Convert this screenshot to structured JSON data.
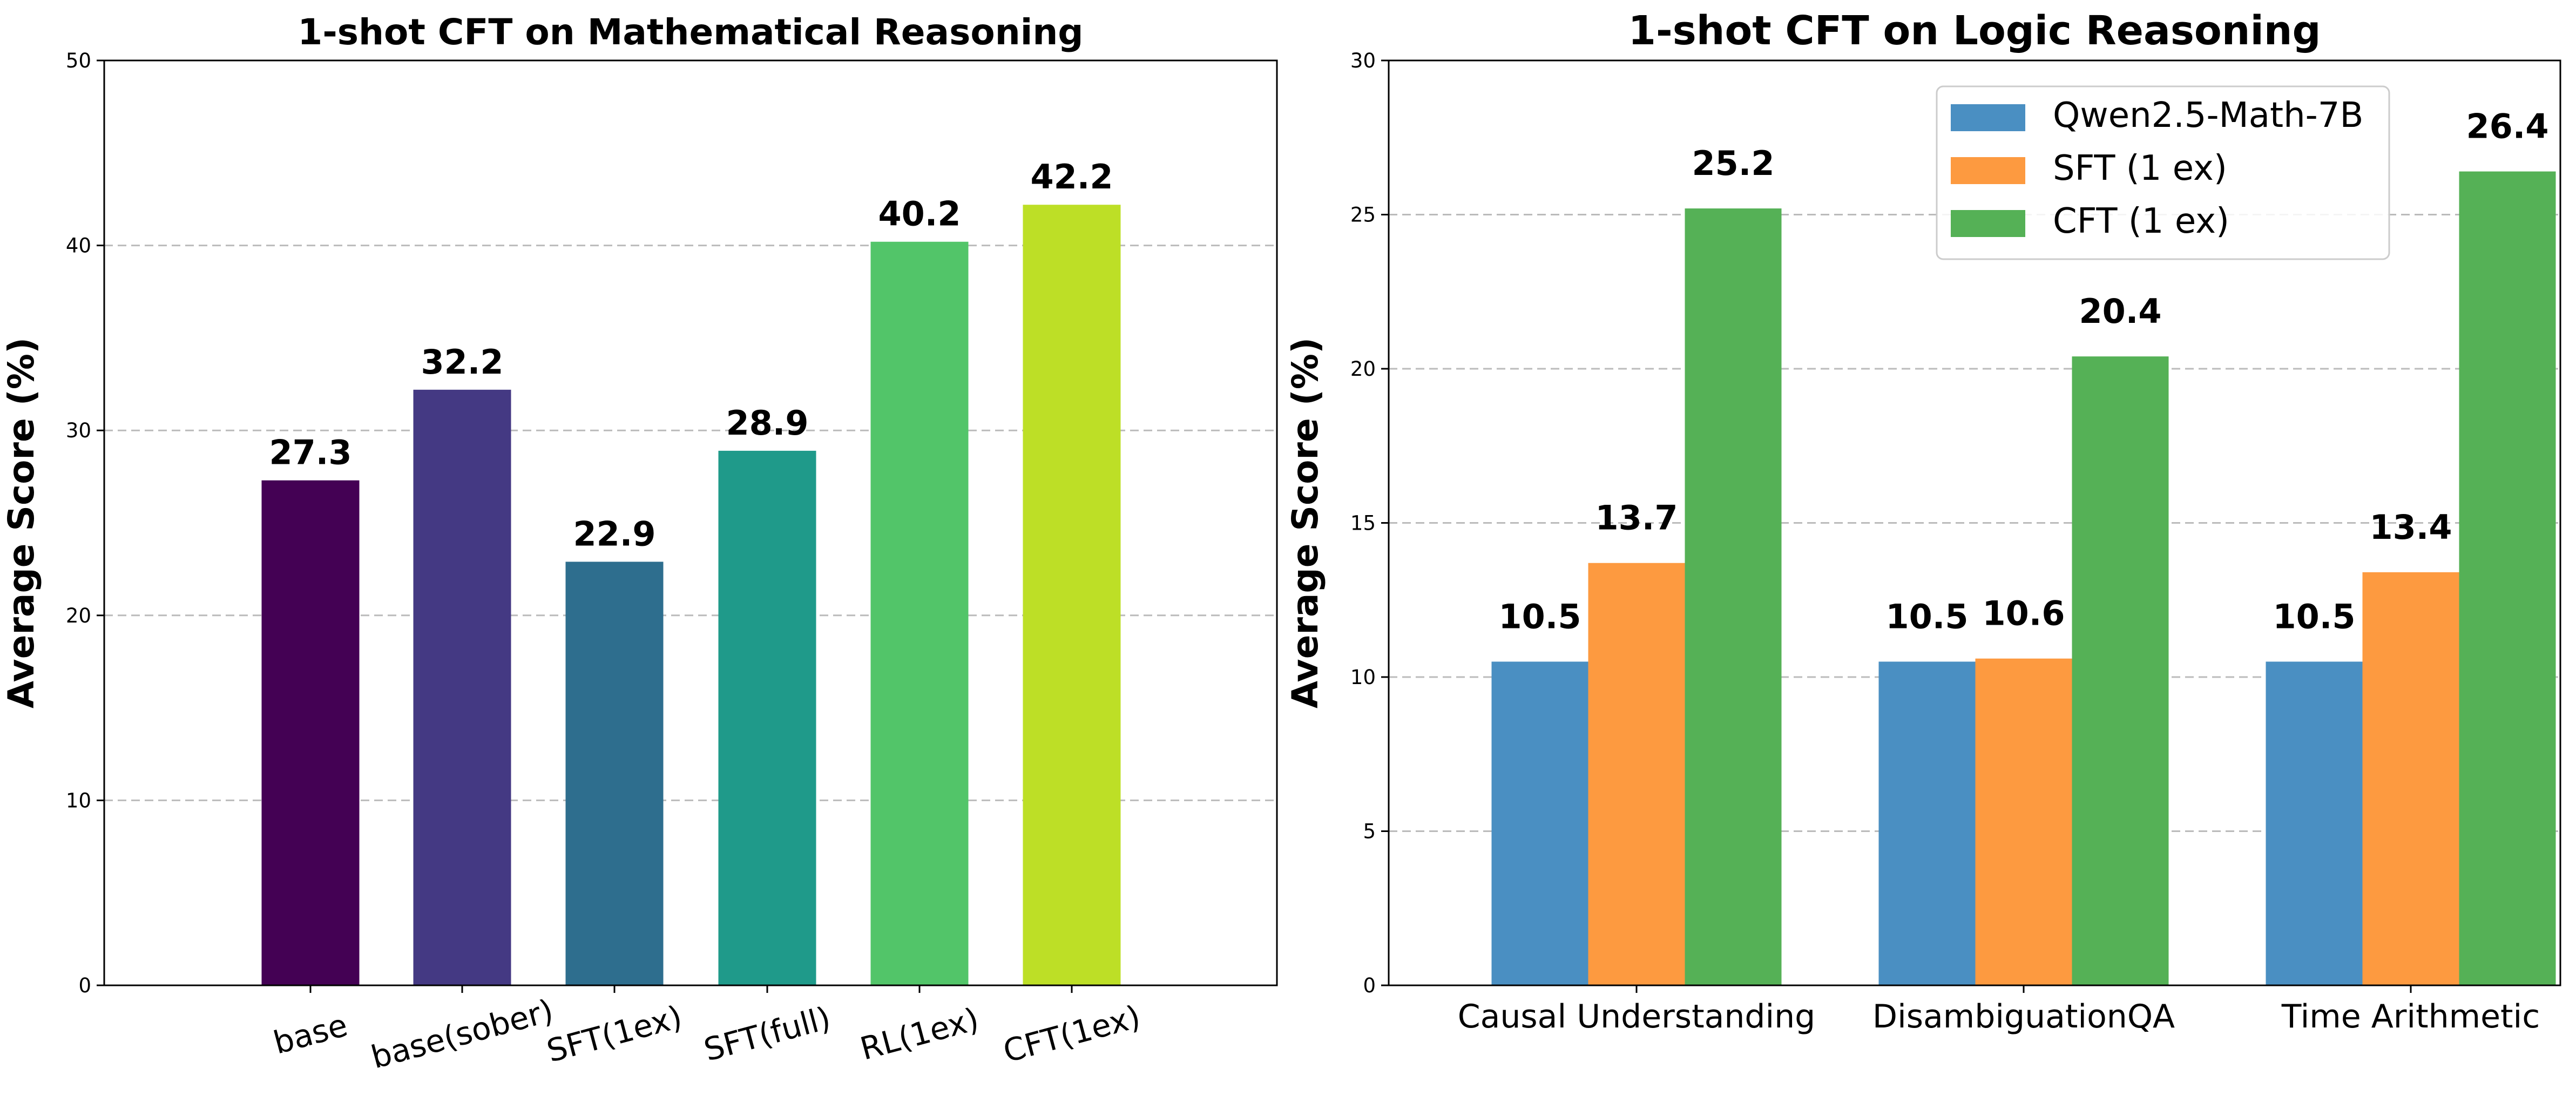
{
  "chart_data": [
    {
      "type": "bar",
      "title": "1-shot CFT on Mathematical Reasoning",
      "xlabel": "",
      "ylabel": "Average Score (%)",
      "ylim": [
        0,
        50
      ],
      "yticks": [
        "0",
        "10",
        "20",
        "30",
        "40",
        "50"
      ],
      "grid": "horizontal dashed",
      "categories": [
        "base",
        "base(sober)",
        "SFT(1ex)",
        "SFT(full)",
        "RL(1ex)",
        "CFT(1ex)"
      ],
      "values": [
        27.3,
        32.2,
        22.9,
        28.9,
        40.2,
        42.2
      ],
      "value_labels": [
        "27.3",
        "32.2",
        "22.9",
        "28.9",
        "40.2",
        "42.2"
      ],
      "colors": [
        "#440154",
        "#443983",
        "#2e6e8e",
        "#1f9a8a",
        "#52c569",
        "#bddf26"
      ]
    },
    {
      "type": "bar",
      "title": "1-shot CFT on Logic Reasoning",
      "xlabel": "",
      "ylabel": "Average Score (%)",
      "ylim": [
        0,
        30
      ],
      "yticks": [
        "0",
        "5",
        "10",
        "15",
        "20",
        "25",
        "30"
      ],
      "grid": "horizontal dashed",
      "legend_position": "top-right",
      "categories": [
        "Causal Understanding",
        "DisambiguationQA",
        "Time Arithmetic"
      ],
      "series": [
        {
          "name": "Qwen2.5-Math-7B",
          "color": "#4a8fc2",
          "values": [
            10.5,
            10.5,
            10.5
          ],
          "value_labels": [
            "10.5",
            "10.5",
            "10.5"
          ]
        },
        {
          "name": "SFT (1 ex)",
          "color": "#fd9a40",
          "values": [
            13.7,
            10.6,
            13.4
          ],
          "value_labels": [
            "13.7",
            "10.6",
            "13.4"
          ]
        },
        {
          "name": "CFT (1 ex)",
          "color": "#55b156",
          "values": [
            25.2,
            20.4,
            26.4
          ],
          "value_labels": [
            "25.2",
            "20.4",
            "26.4"
          ]
        }
      ]
    }
  ]
}
